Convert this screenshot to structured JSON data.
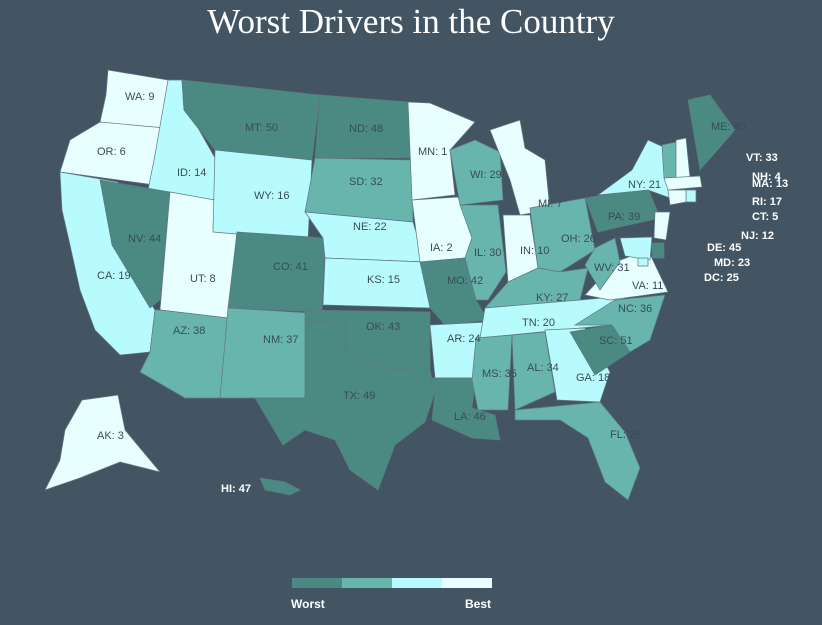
{
  "title": "Worst Drivers in the Country",
  "palette": {
    "bin1": "#4a8a82",
    "bin2": "#67b5ac",
    "bin3": "#b7fbff",
    "bin4": "#e7ffff"
  },
  "legend": {
    "worst_label": "Worst",
    "best_label": "Best"
  },
  "states": [
    {
      "code": "WA",
      "rank": 9
    },
    {
      "code": "OR",
      "rank": 6
    },
    {
      "code": "CA",
      "rank": 19
    },
    {
      "code": "ID",
      "rank": 14
    },
    {
      "code": "NV",
      "rank": 44
    },
    {
      "code": "UT",
      "rank": 8
    },
    {
      "code": "AZ",
      "rank": 38
    },
    {
      "code": "MT",
      "rank": 50
    },
    {
      "code": "WY",
      "rank": 16
    },
    {
      "code": "CO",
      "rank": 41
    },
    {
      "code": "NM",
      "rank": 37
    },
    {
      "code": "ND",
      "rank": 48
    },
    {
      "code": "SD",
      "rank": 32
    },
    {
      "code": "NE",
      "rank": 22
    },
    {
      "code": "KS",
      "rank": 15
    },
    {
      "code": "OK",
      "rank": 43
    },
    {
      "code": "TX",
      "rank": 49
    },
    {
      "code": "MN",
      "rank": 1
    },
    {
      "code": "IA",
      "rank": 2
    },
    {
      "code": "MO",
      "rank": 42
    },
    {
      "code": "AR",
      "rank": 24
    },
    {
      "code": "LA",
      "rank": 46
    },
    {
      "code": "WI",
      "rank": 29
    },
    {
      "code": "IL",
      "rank": 30
    },
    {
      "code": "MI",
      "rank": 7
    },
    {
      "code": "IN",
      "rank": 10
    },
    {
      "code": "OH",
      "rank": 26
    },
    {
      "code": "KY",
      "rank": 27
    },
    {
      "code": "TN",
      "rank": 20
    },
    {
      "code": "MS",
      "rank": 35
    },
    {
      "code": "AL",
      "rank": 34
    },
    {
      "code": "GA",
      "rank": 18
    },
    {
      "code": "FL",
      "rank": 28
    },
    {
      "code": "SC",
      "rank": 51
    },
    {
      "code": "NC",
      "rank": 36
    },
    {
      "code": "VA",
      "rank": 11
    },
    {
      "code": "WV",
      "rank": 31
    },
    {
      "code": "PA",
      "rank": 39
    },
    {
      "code": "NY",
      "rank": 21
    },
    {
      "code": "ME",
      "rank": 40
    },
    {
      "code": "VT",
      "rank": 33
    },
    {
      "code": "NH",
      "rank": 4
    },
    {
      "code": "MA",
      "rank": 13
    },
    {
      "code": "RI",
      "rank": 17
    },
    {
      "code": "CT",
      "rank": 5
    },
    {
      "code": "NJ",
      "rank": 12
    },
    {
      "code": "DE",
      "rank": 45
    },
    {
      "code": "MD",
      "rank": 23
    },
    {
      "code": "DC",
      "rank": 25
    },
    {
      "code": "AK",
      "rank": 3
    },
    {
      "code": "HI",
      "rank": 47
    }
  ]
}
